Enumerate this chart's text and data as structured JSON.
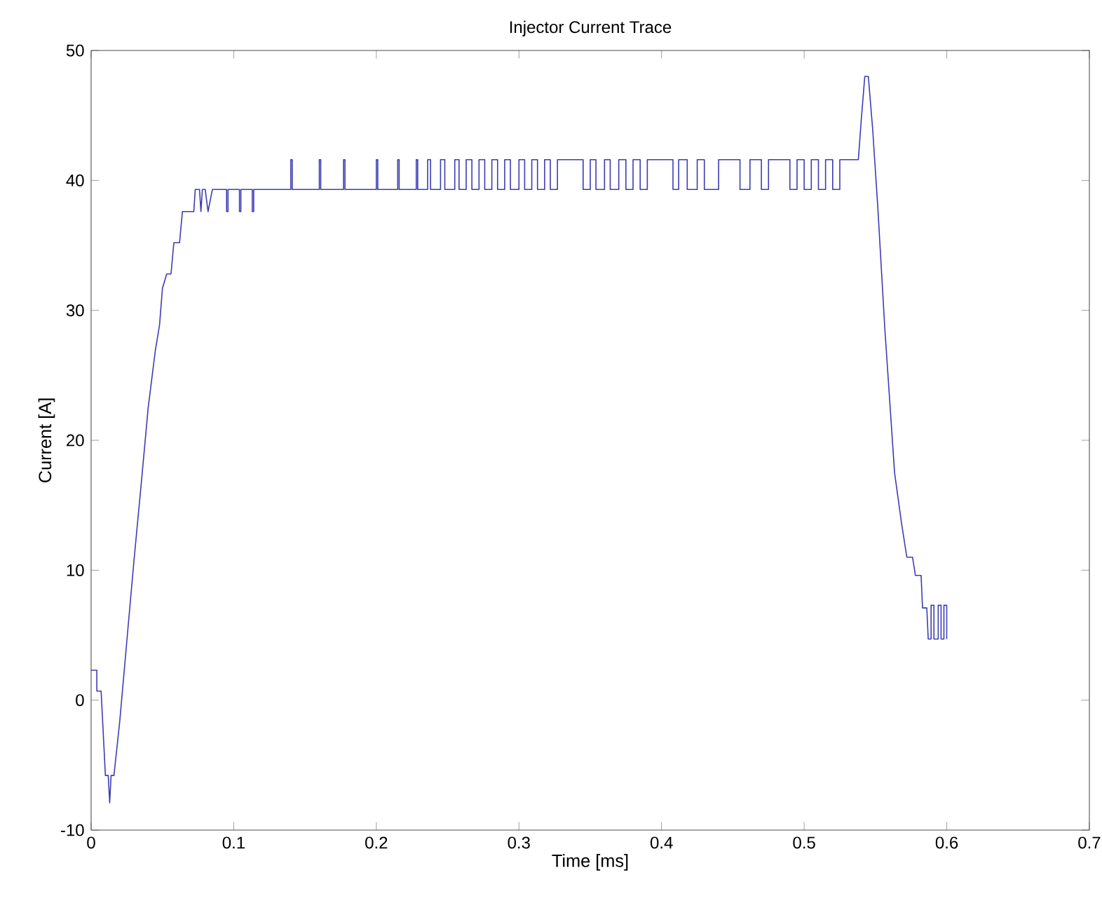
{
  "chart_data": {
    "type": "line",
    "title": "Injector Current Trace",
    "xlabel": "Time [ms]",
    "ylabel": "Current [A]",
    "xlim": [
      0,
      0.7
    ],
    "xticks": [
      0,
      0.1,
      0.2,
      0.3,
      0.4,
      0.5,
      0.6,
      0.7
    ],
    "ylim": [
      -10,
      50
    ],
    "yticks": [
      -10,
      0,
      10,
      20,
      30,
      40,
      50
    ],
    "grid": false,
    "marker": "none",
    "line_style": "solid",
    "series": [
      {
        "color": "#3c3cb4",
        "x": [
          0,
          0.004,
          0.004,
          0.007,
          0.01,
          0.012,
          0.013,
          0.014,
          0.016,
          0.02,
          0.025,
          0.03,
          0.035,
          0.04,
          0.045,
          0.048,
          0.05,
          0.053,
          0.056,
          0.058,
          0.062,
          0.064,
          0.072,
          0.073,
          0.076,
          0.077,
          0.078,
          0.08,
          0.082,
          0.085,
          0.095,
          0.095,
          0.096,
          0.096,
          0.104,
          0.104,
          0.105,
          0.105,
          0.113,
          0.113,
          0.114,
          0.114,
          0.14,
          0.14,
          0.141,
          0.141,
          0.16,
          0.16,
          0.161,
          0.161,
          0.177,
          0.177,
          0.178,
          0.178,
          0.2,
          0.2,
          0.201,
          0.201,
          0.215,
          0.215,
          0.216,
          0.216,
          0.228,
          0.228,
          0.229,
          0.229,
          0.236,
          0.236,
          0.238,
          0.238,
          0.245,
          0.245,
          0.248,
          0.248,
          0.255,
          0.255,
          0.258,
          0.258,
          0.263,
          0.263,
          0.267,
          0.267,
          0.272,
          0.272,
          0.276,
          0.276,
          0.281,
          0.281,
          0.285,
          0.285,
          0.29,
          0.29,
          0.294,
          0.294,
          0.3,
          0.3,
          0.304,
          0.304,
          0.309,
          0.309,
          0.313,
          0.313,
          0.318,
          0.318,
          0.322,
          0.322,
          0.327,
          0.327,
          0.345,
          0.345,
          0.35,
          0.35,
          0.354,
          0.354,
          0.36,
          0.36,
          0.364,
          0.364,
          0.37,
          0.37,
          0.375,
          0.375,
          0.38,
          0.38,
          0.385,
          0.385,
          0.39,
          0.39,
          0.408,
          0.408,
          0.412,
          0.412,
          0.418,
          0.418,
          0.425,
          0.425,
          0.43,
          0.43,
          0.44,
          0.44,
          0.455,
          0.455,
          0.462,
          0.462,
          0.47,
          0.47,
          0.475,
          0.475,
          0.49,
          0.49,
          0.495,
          0.495,
          0.5,
          0.5,
          0.505,
          0.505,
          0.51,
          0.51,
          0.515,
          0.515,
          0.52,
          0.52,
          0.525,
          0.525,
          0.538,
          0.54,
          0.5425,
          0.545,
          0.548,
          0.5516,
          0.5565,
          0.5605,
          0.5634,
          0.5683,
          0.572,
          0.576,
          0.578,
          0.582,
          0.583,
          0.586,
          0.587,
          0.589,
          0.589,
          0.591,
          0.591,
          0.594,
          0.594,
          0.596,
          0.596,
          0.598,
          0.598,
          0.6,
          0.6
        ],
        "values": [
          2.3,
          2.3,
          0.7,
          0.7,
          -5.8,
          -5.8,
          -7.9,
          -5.8,
          -5.8,
          -1.7,
          4.5,
          10.7,
          16.5,
          22.5,
          26.9,
          28.9,
          31.7,
          32.8,
          32.8,
          35.2,
          35.2,
          37.6,
          37.6,
          39.3,
          39.3,
          37.6,
          39.3,
          39.3,
          37.6,
          39.3,
          39.3,
          37.6,
          37.6,
          39.3,
          39.3,
          37.6,
          37.6,
          39.3,
          39.3,
          37.6,
          37.6,
          39.3,
          39.3,
          41.6,
          41.6,
          39.3,
          39.3,
          41.6,
          41.6,
          39.3,
          39.3,
          41.6,
          41.6,
          39.3,
          39.3,
          41.6,
          41.6,
          39.3,
          39.3,
          41.6,
          41.6,
          39.3,
          39.3,
          41.6,
          41.6,
          39.3,
          39.3,
          41.6,
          41.6,
          39.3,
          39.3,
          41.6,
          41.6,
          39.3,
          39.3,
          41.6,
          41.6,
          39.3,
          39.3,
          41.6,
          41.6,
          39.3,
          39.3,
          41.6,
          41.6,
          39.3,
          39.3,
          41.6,
          41.6,
          39.3,
          39.3,
          41.6,
          41.6,
          39.3,
          39.3,
          41.6,
          41.6,
          39.3,
          39.3,
          41.6,
          41.6,
          39.3,
          39.3,
          41.6,
          41.6,
          39.3,
          39.3,
          41.6,
          41.6,
          39.3,
          39.3,
          41.6,
          41.6,
          39.3,
          39.3,
          41.6,
          41.6,
          39.3,
          39.3,
          41.6,
          41.6,
          39.3,
          39.3,
          41.6,
          41.6,
          39.3,
          39.3,
          41.6,
          41.6,
          39.3,
          39.3,
          41.6,
          41.6,
          39.3,
          39.3,
          41.6,
          41.6,
          39.3,
          39.3,
          41.6,
          41.6,
          39.3,
          39.3,
          41.6,
          41.6,
          39.3,
          39.3,
          41.6,
          41.6,
          39.3,
          39.3,
          41.6,
          41.6,
          39.3,
          39.3,
          41.6,
          41.6,
          39.3,
          39.3,
          41.6,
          41.6,
          39.3,
          39.3,
          41.6,
          41.6,
          44.6,
          48,
          48,
          44,
          38,
          28.7,
          22.2,
          17.5,
          13.6,
          11,
          11,
          9.6,
          9.6,
          7.1,
          7.1,
          4.7,
          4.7,
          7.3,
          7.3,
          4.7,
          4.7,
          7.3,
          7.3,
          4.7,
          4.7,
          7.3,
          7.3,
          4.7
        ]
      }
    ]
  }
}
